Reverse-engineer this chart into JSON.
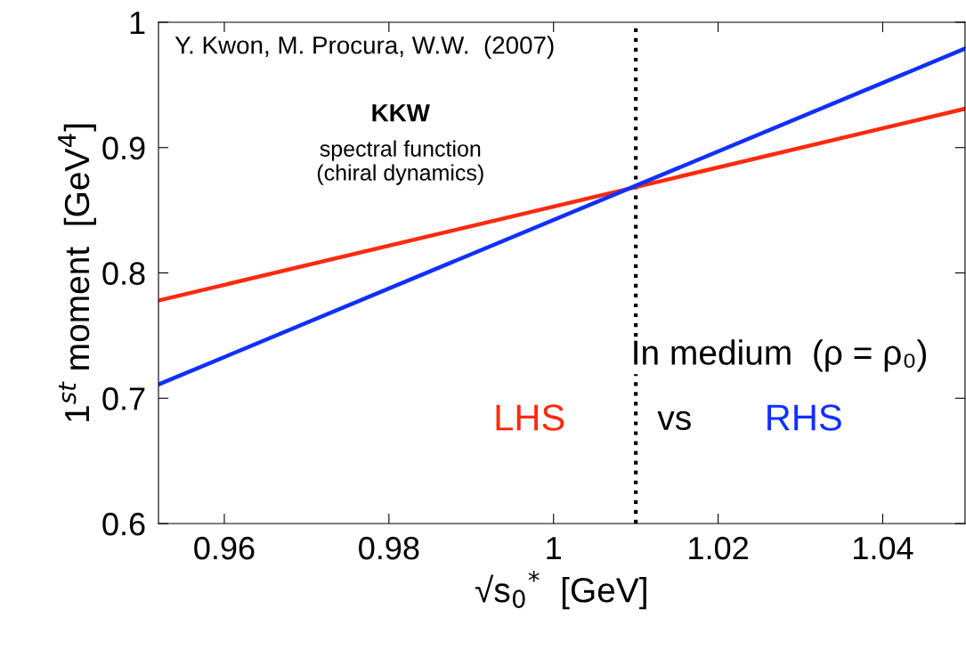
{
  "chart_data": {
    "type": "line",
    "xlabel": "√s$_{0}$$^{*}$  [GeV]",
    "ylabel": "1$^{st}$ moment  [GeV$^{4}$]",
    "x": [
      0.952,
      1.05
    ],
    "series": [
      {
        "name": "LHS",
        "color": "#ff2a0e",
        "values": [
          0.778,
          0.931
        ]
      },
      {
        "name": "RHS",
        "color": "#1030ff",
        "values": [
          0.711,
          0.979
        ]
      }
    ],
    "xlim": [
      0.952,
      1.05
    ],
    "xticks": [
      0.96,
      0.98,
      {
        "value": 1.0,
        "label": "1"
      },
      1.02,
      1.04
    ],
    "ylim": [
      0.6,
      1.0
    ],
    "yticks": [
      0.6,
      0.7,
      0.8,
      0.9,
      {
        "value": 1.0,
        "label": "1"
      }
    ],
    "ref_lines": [
      {
        "axis": "x",
        "value": 1.01,
        "color": "#000000",
        "line_style": "dotted"
      }
    ],
    "annotations": [
      "Y. Kwon, M. Procura, W.W.  (2007)",
      "KKW",
      "spectral function\n(chiral dynamics)",
      "In medium  (ρ = ρ₀)",
      "vs"
    ],
    "grid": false,
    "legend": false,
    "marker": "none",
    "line_style": "solid"
  }
}
